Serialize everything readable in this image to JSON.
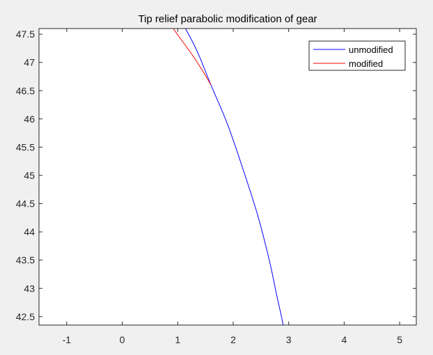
{
  "chart_data": {
    "type": "line",
    "title": "Tip relief parabolic modification of gear",
    "xlabel": "",
    "ylabel": "",
    "xlim": [
      -1.5,
      5.3
    ],
    "ylim": [
      42.35,
      47.6
    ],
    "xticks": [
      -1,
      0,
      1,
      2,
      3,
      4,
      5
    ],
    "yticks": [
      42.5,
      43,
      43.5,
      44,
      44.5,
      45,
      45.5,
      46,
      46.5,
      47,
      47.5
    ],
    "grid": false,
    "legend_position": "top-right",
    "series": [
      {
        "name": "unmodified",
        "color": "#0000ff",
        "x": [
          1.14,
          1.35,
          1.6,
          1.9,
          2.18,
          2.44,
          2.65,
          2.78,
          2.87,
          2.9
        ],
        "y": [
          47.6,
          47.2,
          46.6,
          45.9,
          45.1,
          44.3,
          43.5,
          42.9,
          42.5,
          42.35
        ]
      },
      {
        "name": "modified",
        "color": "#ff0000",
        "x": [
          0.92,
          1.05,
          1.25,
          1.45,
          1.6
        ],
        "y": [
          47.6,
          47.42,
          47.15,
          46.85,
          46.6
        ]
      }
    ]
  }
}
